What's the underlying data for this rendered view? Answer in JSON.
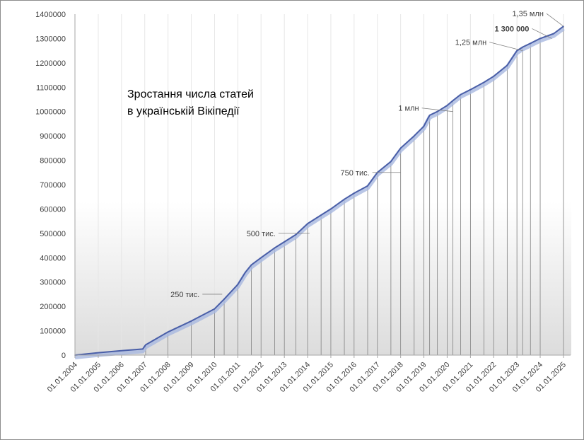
{
  "chart_data": {
    "type": "line",
    "title_lines": [
      "Зростання числа статей",
      "в українській Вікіпедії"
    ],
    "xlabel": "",
    "ylabel": "",
    "ylim": [
      0,
      1400000
    ],
    "y_ticks": [
      "0",
      "100000",
      "200000",
      "300000",
      "400000",
      "500000",
      "600000",
      "700000",
      "800000",
      "900000",
      "1000000",
      "1100000",
      "1200000",
      "1300000",
      "1400000"
    ],
    "x_ticks": [
      "01.01.2004",
      "01.01.2005",
      "01.01.2006",
      "01.01.2007",
      "01.01.2008",
      "01.01.2009",
      "01.01.2010",
      "01.01.2011",
      "01.01.2012",
      "01.01.2013",
      "01.01.2014",
      "01.01.2015",
      "01.01.2016",
      "01.01.2017",
      "01.01.2018",
      "01.01.2019",
      "01.01.2020",
      "01.01.2021",
      "01.01.2022",
      "01.01.2023",
      "01.01.2024",
      "01.01.2025"
    ],
    "grid": false,
    "legend": "none",
    "line_color": "#4a5fa8",
    "glow_color": "#a8b8e0",
    "drop_line_color": "#808080",
    "series": [
      {
        "x": [
          "2004-01-01",
          "2005-01-01",
          "2006-01-01",
          "2006-12-01",
          "2007-01-15",
          "2008-01-01",
          "2009-01-01",
          "2010-01-01",
          "2010-06-01",
          "2011-01-01",
          "2011-05-01",
          "2011-08-01",
          "2012-01-01",
          "2012-08-01",
          "2013-01-01",
          "2013-07-01",
          "2014-01-01",
          "2014-08-01",
          "2015-01-01",
          "2015-08-01",
          "2016-01-01",
          "2016-08-01",
          "2017-01-01",
          "2017-08-01",
          "2018-01-01",
          "2018-08-01",
          "2019-01-01",
          "2019-04-01",
          "2019-08-01",
          "2020-01-01",
          "2020-04-01",
          "2020-08-01",
          "2021-01-01",
          "2021-08-01",
          "2022-01-01",
          "2022-08-01",
          "2023-01-01",
          "2023-04-01",
          "2023-08-01",
          "2024-01-01",
          "2024-08-01",
          "2025-01-01"
        ],
        "y": [
          0,
          10000,
          18000,
          25000,
          42000,
          95000,
          140000,
          190000,
          230000,
          290000,
          340000,
          370000,
          400000,
          440000,
          465000,
          495000,
          540000,
          575000,
          600000,
          640000,
          665000,
          695000,
          750000,
          795000,
          850000,
          900000,
          940000,
          985000,
          1000000,
          1025000,
          1045000,
          1070000,
          1090000,
          1120000,
          1145000,
          1190000,
          1250000,
          1265000,
          1280000,
          1300000,
          1320000,
          1350000
        ]
      }
    ],
    "drop_lines_at": [
      "2007-01-15",
      "2008-01-01",
      "2009-01-01",
      "2010-01-01",
      "2010-06-01",
      "2011-01-01",
      "2011-08-01",
      "2012-01-01",
      "2012-08-01",
      "2013-01-01",
      "2013-07-01",
      "2014-01-01",
      "2014-08-01",
      "2015-01-01",
      "2015-08-01",
      "2016-01-01",
      "2016-08-01",
      "2017-01-01",
      "2017-08-01",
      "2018-01-01",
      "2018-08-01",
      "2019-01-01",
      "2019-04-01",
      "2019-08-01",
      "2020-01-01",
      "2020-04-01",
      "2020-08-01",
      "2021-01-01",
      "2021-08-01",
      "2022-01-01",
      "2022-08-01",
      "2023-01-01",
      "2023-04-01",
      "2023-08-01",
      "2024-01-01",
      "2025-01-01"
    ],
    "annotations": [
      {
        "text": "250 тис.",
        "x": "2010-05-01",
        "y": 250000,
        "bold": false
      },
      {
        "text": "500 тис.",
        "x": "2014-02-01",
        "y": 500000,
        "bold": false
      },
      {
        "text": "750 тис.",
        "x": "2018-01-01",
        "y": 750000,
        "bold": false
      },
      {
        "text": "1 млн",
        "x": "2020-04-01",
        "y": 1000000,
        "bold": false
      },
      {
        "text": "1,25 млн",
        "x": "2023-04-01",
        "y": 1250000,
        "bold": false
      },
      {
        "text": "1 300 000",
        "x": "2024-07-01",
        "y": 1300000,
        "bold": true
      },
      {
        "text": "1,35 млн",
        "x": "2025-01-01",
        "y": 1350000,
        "bold": false
      }
    ]
  }
}
